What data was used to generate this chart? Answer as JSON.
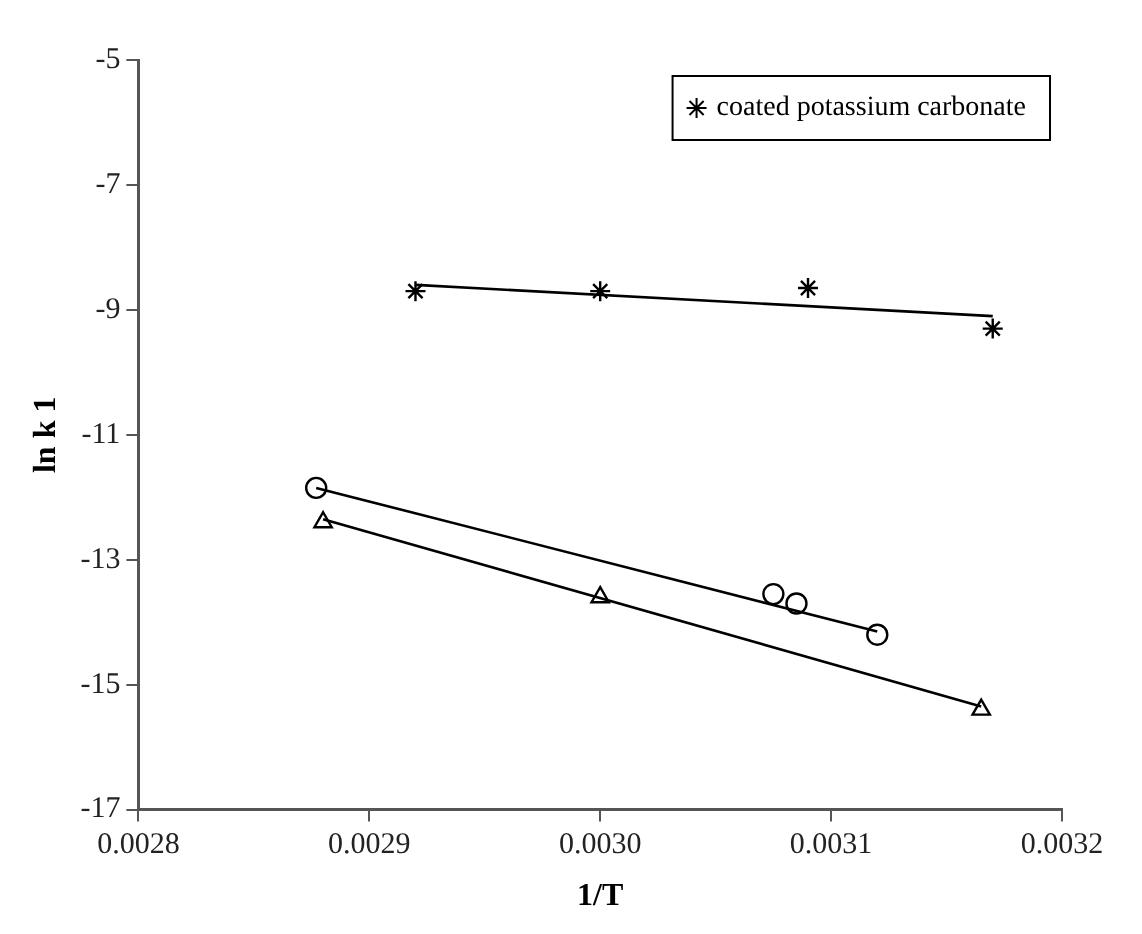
{
  "chart_data": {
    "type": "scatter",
    "xlabel": "1/T",
    "ylabel": "ln k 1",
    "xlim": [
      0.0028,
      0.0032
    ],
    "xticks": [
      {
        "value": 0.0028,
        "label": "0.0028"
      },
      {
        "value": 0.0029,
        "label": "0.0029"
      },
      {
        "value": 0.003,
        "label": "0.0030"
      },
      {
        "value": 0.0031,
        "label": "0.0031"
      },
      {
        "value": 0.0032,
        "label": "0.0032"
      }
    ],
    "ylim": [
      -17,
      -5
    ],
    "yticks": [
      -17,
      -15,
      -13,
      -11,
      -9,
      -7,
      -5
    ],
    "grid": false,
    "legend": "top right",
    "series": [
      {
        "name": "coated potassium carbonate",
        "color": "#000000",
        "marker": "cross",
        "x": [
          0.00292,
          0.003,
          0.00309,
          0.00317
        ],
        "values": [
          -8.7,
          -8.7,
          -8.65,
          -9.3
        ]
      },
      {
        "color": "#000000",
        "marker": "circle",
        "x": [
          0.002877,
          0.003075,
          0.003085,
          0.00312
        ],
        "values": [
          -11.85,
          -13.55,
          -13.7,
          -14.2
        ]
      },
      {
        "color": "#000000",
        "marker": "triangle",
        "x": [
          0.00288,
          0.003,
          0.003165
        ],
        "values": [
          -12.4,
          -13.6,
          -15.4
        ]
      },
      {
        "type": "line",
        "color": "#000000",
        "marker": "none",
        "line_style": "solid",
        "x": [
          0.00292,
          0.00317
        ],
        "values": [
          -8.6,
          -9.1
        ]
      },
      {
        "type": "line",
        "color": "#000000",
        "marker": "none",
        "line_style": "solid",
        "x": [
          0.002877,
          0.00312
        ],
        "values": [
          -11.85,
          -14.15
        ]
      },
      {
        "type": "line",
        "color": "#000000",
        "marker": "none",
        "line_style": "solid",
        "x": [
          0.00288,
          0.003165
        ],
        "values": [
          -12.35,
          -15.35
        ]
      }
    ]
  }
}
